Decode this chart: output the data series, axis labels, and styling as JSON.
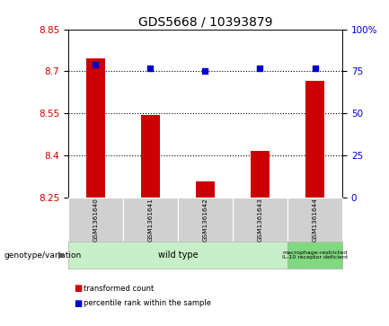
{
  "title": "GDS5668 / 10393879",
  "samples": [
    "GSM1361640",
    "GSM1361641",
    "GSM1361642",
    "GSM1361643",
    "GSM1361644"
  ],
  "bar_values": [
    8.745,
    8.545,
    8.305,
    8.415,
    8.665
  ],
  "percentile_values": [
    79,
    77,
    75,
    77,
    77
  ],
  "bar_bottom": 8.25,
  "ylim_left": [
    8.25,
    8.85
  ],
  "ylim_right": [
    0,
    100
  ],
  "yticks_left": [
    8.25,
    8.4,
    8.55,
    8.7,
    8.85
  ],
  "yticks_right": [
    0,
    25,
    50,
    75,
    100
  ],
  "ytick_labels_right": [
    "0",
    "25",
    "50",
    "75",
    "100%"
  ],
  "bar_color": "#cc0000",
  "dot_color": "#0000cc",
  "bg_plot": "#ffffff",
  "group1_label": "wild type",
  "group2_label": "macrophage-restricted\nIL-10 receptor deficient",
  "group1_bg": "#c8f0c8",
  "group2_bg": "#80d880",
  "genotype_label": "genotype/variation",
  "legend_bar_label": "transformed count",
  "legend_dot_label": "percentile rank within the sample",
  "sample_bg": "#d0d0d0",
  "title_fontsize": 10,
  "tick_fontsize": 7.5
}
